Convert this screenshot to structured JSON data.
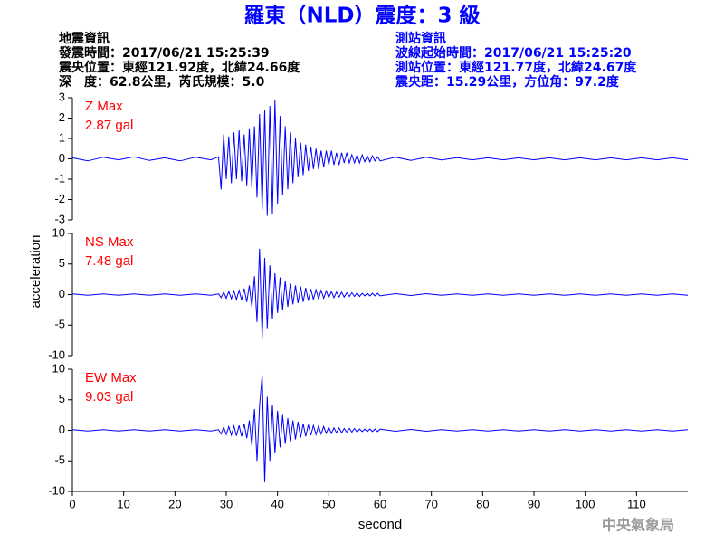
{
  "title": "羅東（NLD）震度：3 級",
  "info_left": [
    "地震資訊",
    "發震時間：2017/06/21 15:25:39",
    "震央位置：東經121.92度，北緯24.66度",
    "深　度：62.8公里，芮氏規模：5.0"
  ],
  "info_right": [
    "測站資訊",
    "波線起始時間：2017/06/21 15:25:20",
    "測站位置：東經121.77度，北緯24.67度",
    "震央距：15.29公里，方位角：97.2度"
  ],
  "y_label": "acceleration",
  "watermark": "中央氣象局",
  "chart_data": [
    {
      "type": "line",
      "annotation": [
        "Z Max",
        "2.87 gal"
      ],
      "color": "#0000ff",
      "xlim": [
        0,
        120
      ],
      "ylim": [
        -3,
        3
      ],
      "yticks": [
        -3,
        -2,
        -1,
        0,
        1,
        2,
        3
      ],
      "x": [
        0,
        3,
        6,
        9,
        12,
        15,
        18,
        21,
        24,
        27,
        28.5,
        29,
        29.5,
        30,
        30.5,
        31,
        31.5,
        32,
        32.5,
        33,
        33.5,
        34,
        34.5,
        35,
        35.5,
        36,
        36.5,
        37,
        37.5,
        38,
        38.5,
        39,
        39.5,
        40,
        40.5,
        41,
        41.5,
        42,
        42.5,
        43,
        43.5,
        44,
        44.5,
        45,
        45.5,
        46,
        46.5,
        47,
        47.5,
        48,
        48.5,
        49,
        49.5,
        50,
        50.5,
        51,
        51.5,
        52,
        52.5,
        53,
        53.5,
        54,
        54.5,
        55,
        55.5,
        56,
        56.5,
        57,
        57.5,
        58,
        58.5,
        59,
        59.5,
        60,
        63,
        66,
        69,
        72,
        75,
        78,
        81,
        84,
        87,
        90,
        93,
        96,
        99,
        102,
        105,
        108,
        111,
        114,
        117,
        120
      ],
      "values": [
        0.05,
        -0.1,
        0.08,
        -0.05,
        0.1,
        -0.08,
        0.05,
        -0.1,
        0.08,
        -0.05,
        0.1,
        -1.5,
        1.2,
        -1.0,
        1.1,
        -1.2,
        1.3,
        -1.0,
        1.4,
        -1.1,
        1.2,
        -1.3,
        1.5,
        -1.4,
        1.6,
        -1.9,
        2.2,
        -2.5,
        2.4,
        -2.8,
        2.6,
        -2.7,
        2.87,
        -2.2,
        2.1,
        -1.8,
        1.6,
        -1.5,
        1.3,
        -1.2,
        1.0,
        -0.9,
        0.8,
        -0.8,
        0.7,
        -0.6,
        0.6,
        -0.5,
        0.5,
        -0.5,
        0.4,
        -0.4,
        0.4,
        -0.3,
        0.4,
        -0.3,
        0.3,
        -0.3,
        0.3,
        -0.2,
        0.3,
        -0.2,
        0.2,
        -0.2,
        0.2,
        -0.2,
        0.2,
        -0.15,
        0.15,
        -0.15,
        0.15,
        -0.1,
        0.1,
        -0.1,
        0.08,
        -0.08,
        0.08,
        -0.06,
        0.06,
        -0.05,
        0.05,
        -0.05,
        0.05,
        -0.05,
        0.05,
        -0.05,
        0.05,
        -0.05,
        0.05,
        -0.05,
        0.05,
        -0.05,
        0.05,
        -0.05
      ]
    },
    {
      "type": "line",
      "annotation": [
        "NS Max",
        "7.48 gal"
      ],
      "color": "#0000ff",
      "xlim": [
        0,
        120
      ],
      "ylim": [
        -10,
        10
      ],
      "yticks": [
        -10,
        -5,
        0,
        5,
        10
      ],
      "x": [
        0,
        3,
        6,
        9,
        12,
        15,
        18,
        21,
        24,
        27,
        28.5,
        29,
        29.5,
        30,
        30.5,
        31,
        31.5,
        32,
        32.5,
        33,
        33.5,
        34,
        34.5,
        35,
        35.5,
        36,
        36.5,
        37,
        37.5,
        38,
        38.5,
        39,
        39.5,
        40,
        40.5,
        41,
        41.5,
        42,
        42.5,
        43,
        43.5,
        44,
        44.5,
        45,
        45.5,
        46,
        46.5,
        47,
        47.5,
        48,
        48.5,
        49,
        49.5,
        50,
        50.5,
        51,
        51.5,
        52,
        52.5,
        53,
        53.5,
        54,
        54.5,
        55,
        55.5,
        56,
        56.5,
        57,
        57.5,
        58,
        58.5,
        59,
        59.5,
        60,
        63,
        66,
        69,
        72,
        75,
        78,
        81,
        84,
        87,
        90,
        93,
        96,
        99,
        102,
        105,
        108,
        111,
        114,
        117,
        120
      ],
      "values": [
        0.1,
        -0.1,
        0.1,
        -0.1,
        0.1,
        -0.1,
        0.1,
        -0.1,
        0.1,
        -0.1,
        0.1,
        -0.5,
        0.4,
        -0.6,
        0.5,
        -0.7,
        0.6,
        -0.8,
        0.7,
        -0.9,
        1.0,
        -1.2,
        1.5,
        -2.0,
        3.0,
        -4.5,
        7.48,
        -7.2,
        6.0,
        -5.5,
        4.8,
        -4.0,
        3.5,
        -3.0,
        2.8,
        -2.5,
        2.2,
        -2.0,
        1.8,
        -1.6,
        1.5,
        -1.4,
        1.3,
        -1.2,
        1.1,
        -1.0,
        0.9,
        -0.8,
        0.8,
        -0.7,
        0.7,
        -0.6,
        0.6,
        -0.5,
        0.5,
        -0.5,
        0.4,
        -0.4,
        0.4,
        -0.4,
        0.3,
        -0.3,
        0.3,
        -0.3,
        0.3,
        -0.3,
        0.2,
        -0.2,
        0.2,
        -0.2,
        0.2,
        -0.2,
        0.2,
        -0.2,
        0.15,
        -0.15,
        0.15,
        -0.1,
        0.1,
        -0.1,
        0.1,
        -0.1,
        0.1,
        -0.1,
        0.1,
        -0.1,
        0.1,
        -0.1,
        0.1,
        -0.1,
        0.1,
        -0.1,
        0.1,
        -0.1
      ]
    },
    {
      "type": "line",
      "annotation": [
        "EW Max",
        "9.03 gal"
      ],
      "color": "#0000ff",
      "xlim": [
        0,
        120
      ],
      "ylim": [
        -10,
        10
      ],
      "yticks": [
        -10,
        -5,
        0,
        5,
        10
      ],
      "xticks": [
        0,
        10,
        20,
        30,
        40,
        50,
        60,
        70,
        80,
        90,
        100,
        110
      ],
      "x_label": "second",
      "x": [
        0,
        3,
        6,
        9,
        12,
        15,
        18,
        21,
        24,
        27,
        28.5,
        29,
        29.5,
        30,
        30.5,
        31,
        31.5,
        32,
        32.5,
        33,
        33.5,
        34,
        34.5,
        35,
        35.5,
        36,
        36.5,
        37,
        37.5,
        38,
        38.5,
        39,
        39.5,
        40,
        40.5,
        41,
        41.5,
        42,
        42.5,
        43,
        43.5,
        44,
        44.5,
        45,
        45.5,
        46,
        46.5,
        47,
        47.5,
        48,
        48.5,
        49,
        49.5,
        50,
        50.5,
        51,
        51.5,
        52,
        52.5,
        53,
        53.5,
        54,
        54.5,
        55,
        55.5,
        56,
        56.5,
        57,
        57.5,
        58,
        58.5,
        59,
        59.5,
        60,
        63,
        66,
        69,
        72,
        75,
        78,
        81,
        84,
        87,
        90,
        93,
        96,
        99,
        102,
        105,
        108,
        111,
        114,
        117,
        120
      ],
      "values": [
        0.1,
        -0.1,
        0.1,
        -0.1,
        0.1,
        -0.1,
        0.1,
        -0.1,
        0.1,
        -0.1,
        0.1,
        -0.6,
        0.5,
        -0.7,
        0.6,
        -0.8,
        0.7,
        -0.9,
        0.8,
        -1.0,
        1.1,
        -1.3,
        1.6,
        -2.5,
        3.5,
        -5.0,
        4.0,
        9.03,
        -8.5,
        5.5,
        -5.0,
        4.2,
        -3.8,
        3.2,
        -2.8,
        2.5,
        -2.2,
        2.0,
        -1.8,
        1.6,
        -1.5,
        1.4,
        -1.2,
        1.1,
        -1.0,
        0.9,
        -0.8,
        0.8,
        -0.7,
        0.7,
        -0.6,
        0.6,
        -0.5,
        0.5,
        -0.5,
        0.4,
        -0.4,
        0.4,
        -0.4,
        0.3,
        -0.3,
        0.3,
        -0.3,
        0.3,
        -0.3,
        0.2,
        -0.2,
        0.2,
        -0.2,
        0.2,
        -0.2,
        0.2,
        -0.2,
        0.2,
        -0.15,
        0.15,
        -0.15,
        0.1,
        -0.1,
        0.1,
        -0.1,
        0.1,
        -0.1,
        0.1,
        -0.1,
        0.1,
        -0.1,
        0.1,
        -0.1,
        0.1,
        -0.1,
        0.1,
        -0.1,
        0.1
      ]
    }
  ]
}
